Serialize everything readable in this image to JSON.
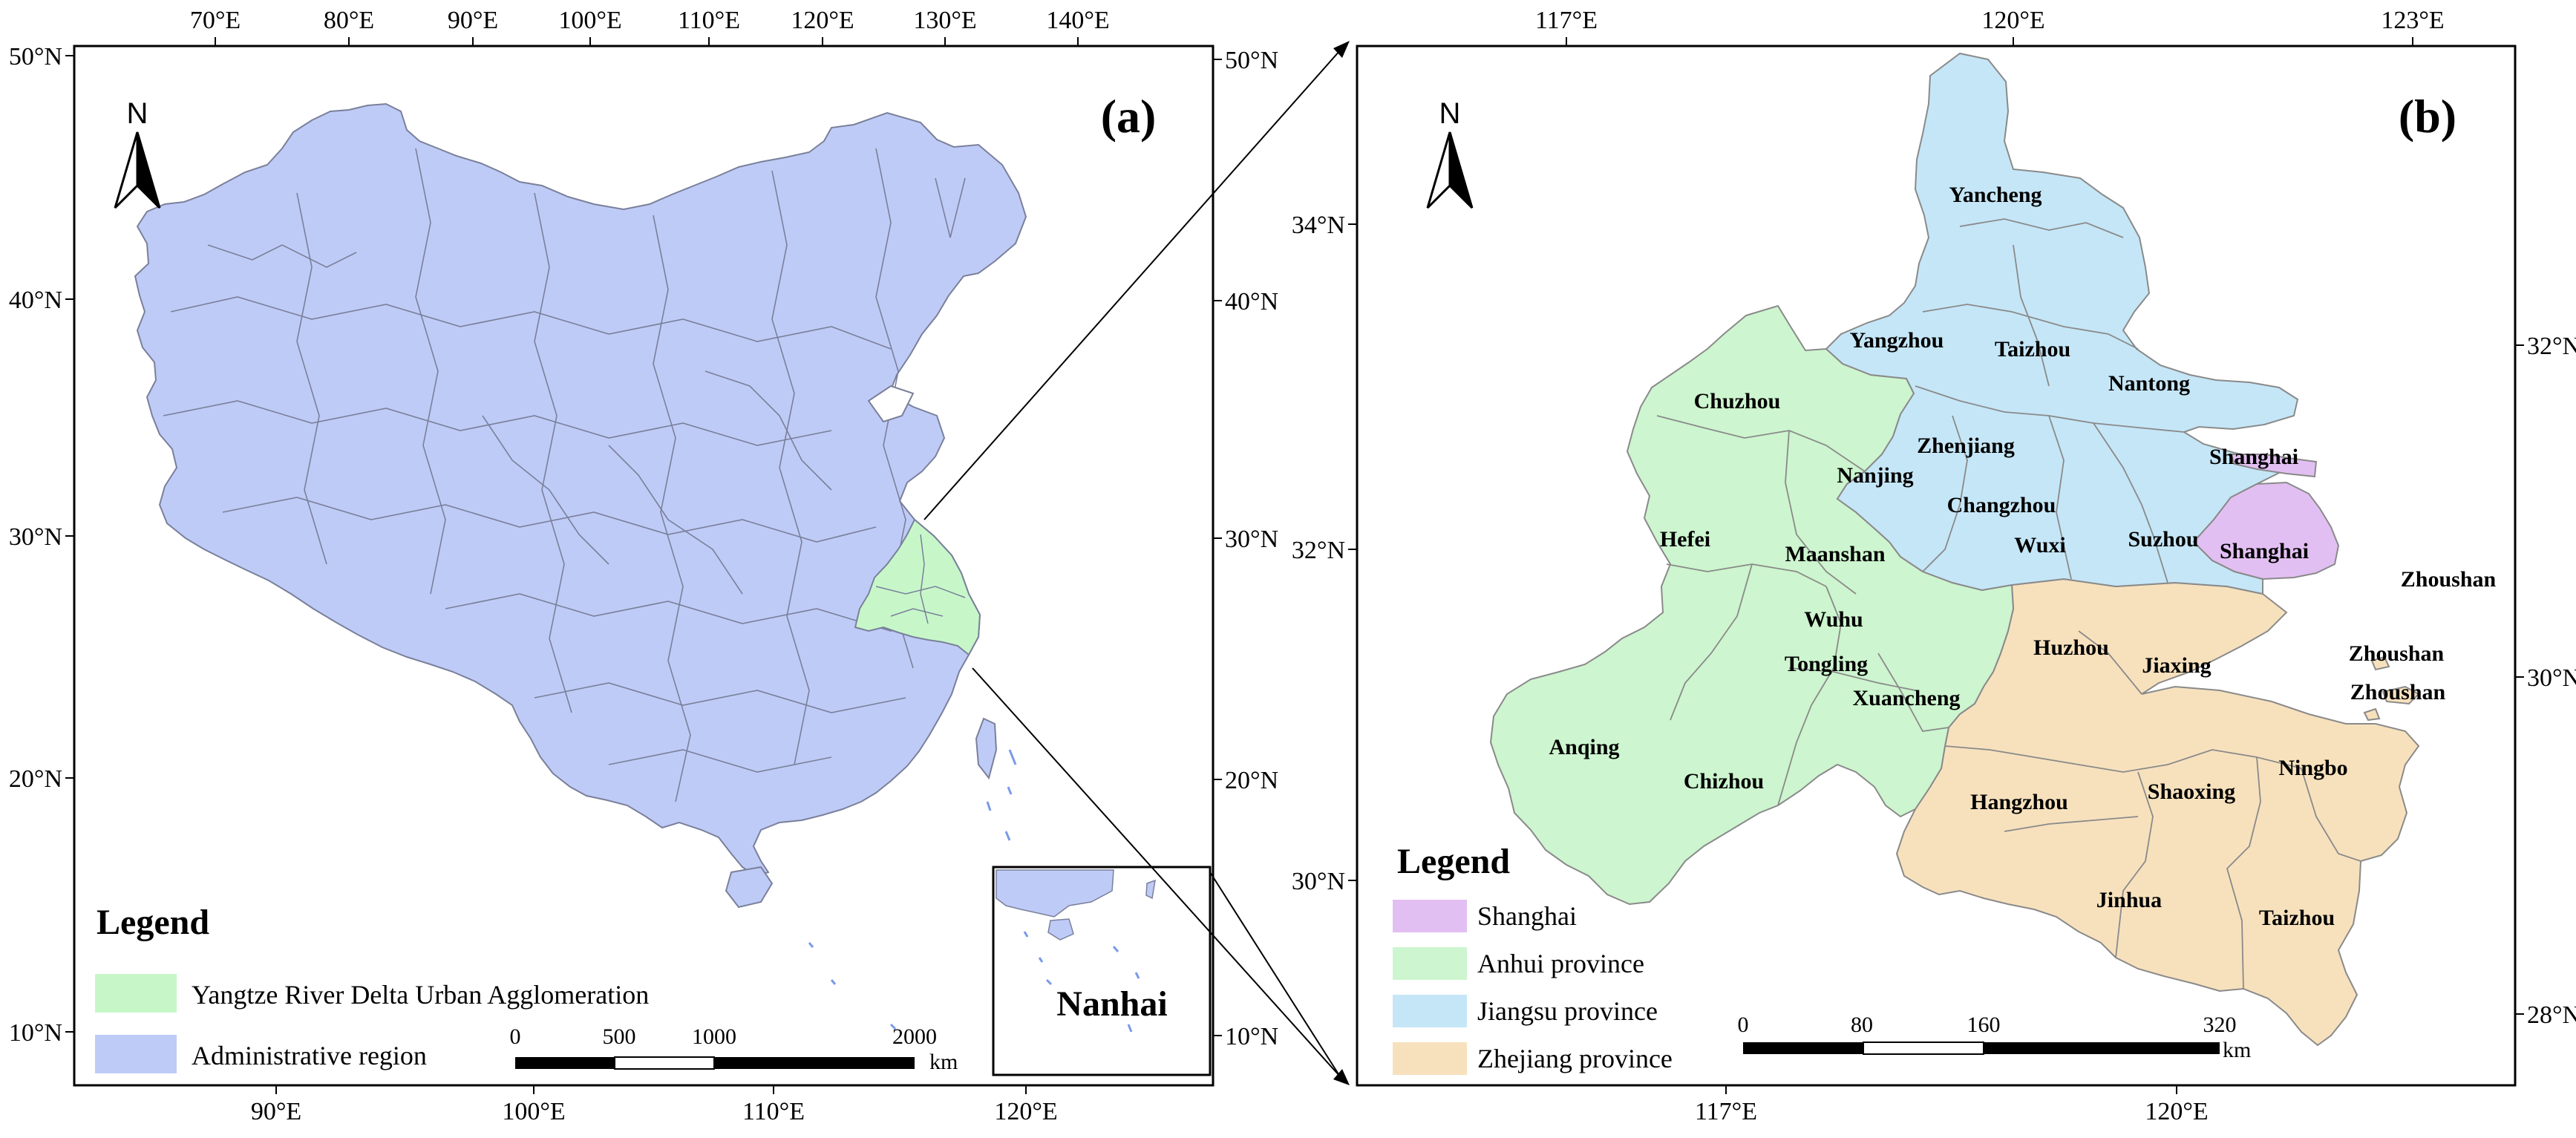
{
  "colors": {
    "china": "#bfcbf7",
    "yrd": "#c7f7c9",
    "shanghai": "#e2bff2",
    "anhui": "#cdf5cf",
    "jiangsu": "#c5e6f7",
    "zhejiang": "#f7e1bd",
    "frame": "#000000"
  },
  "panel_a": {
    "tag": "(a)",
    "north": "N",
    "lon_top": [
      "70°E",
      "80°E",
      "90°E",
      "100°E",
      "110°E",
      "120°E",
      "130°E",
      "140°E"
    ],
    "lon_bottom": [
      "90°E",
      "100°E",
      "110°E",
      "120°E"
    ],
    "lat_left": [
      "50°N",
      "40°N",
      "30°N",
      "20°N",
      "10°N"
    ],
    "lat_right": [
      "50°N",
      "40°N",
      "30°N",
      "20°N",
      "10°N"
    ],
    "legend": {
      "title": "Legend",
      "items": [
        {
          "label": "Yangtze River Delta Urban Agglomeration",
          "color_key": "yrd"
        },
        {
          "label": "Administrative region",
          "color_key": "china"
        }
      ]
    },
    "scale": {
      "ticks": [
        "0",
        "500",
        "1000",
        "2000"
      ],
      "unit": "km"
    },
    "inset_label": "Nanhai"
  },
  "panel_b": {
    "tag": "(b)",
    "north": "N",
    "lon_top": [
      "117°E",
      "120°E",
      "123°E"
    ],
    "lon_bottom": [
      "117°E",
      "120°E"
    ],
    "lat_left": [
      "34°N",
      "32°N",
      "30°N"
    ],
    "lat_right": [
      "32°N",
      "30°N",
      "28°N"
    ],
    "cities": {
      "yancheng": "Yancheng",
      "yangzhou": "Yangzhou",
      "taizhou_js": "Taizhou",
      "nantong": "Nantong",
      "chuzhou": "Chuzhou",
      "zhenjiang": "Zhenjiang",
      "nanjing": "Nanjing",
      "shanghai_top": "Shanghai",
      "changzhou": "Changzhou",
      "hefei": "Hefei",
      "maanshan": "Maanshan",
      "wuxi": "Wuxi",
      "suzhou": "Suzhou",
      "shanghai": "Shanghai",
      "zhoushan1": "Zhoushan",
      "wuhu": "Wuhu",
      "huzhou": "Huzhou",
      "jiaxing": "Jiaxing",
      "tongling": "Tongling",
      "zhoushan2": "Zhoushan",
      "zhoushan3": "Zhoushan",
      "xuancheng": "Xuancheng",
      "anqing": "Anqing",
      "ningbo": "Ningbo",
      "chizhou": "Chizhou",
      "shaoxing": "Shaoxing",
      "hangzhou": "Hangzhou",
      "jinhua": "Jinhua",
      "taizhou_zj": "Taizhou"
    },
    "legend": {
      "title": "Legend",
      "items": [
        {
          "label": "Shanghai",
          "color_key": "shanghai"
        },
        {
          "label": "Anhui province",
          "color_key": "anhui"
        },
        {
          "label": "Jiangsu province",
          "color_key": "jiangsu"
        },
        {
          "label": "Zhejiang province",
          "color_key": "zhejiang"
        }
      ]
    },
    "scale": {
      "ticks": [
        "0",
        "80",
        "160",
        "320"
      ],
      "unit": "km"
    }
  }
}
